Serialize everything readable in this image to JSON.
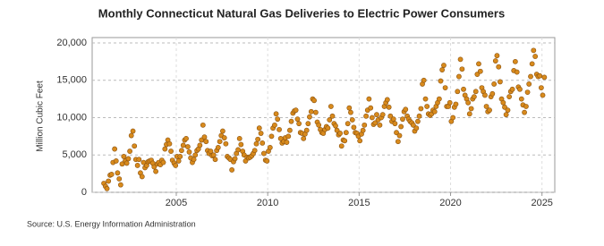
{
  "chart_data": {
    "type": "scatter",
    "title": "Monthly Connecticut Natural Gas Deliveries to Electric Power Consumers",
    "y_label": "Million Cubic Feet",
    "source": "Source: U.S. Energy Information Administration",
    "xlim": [
      2000.4,
      2025.7
    ],
    "xticks": [
      2005,
      2010,
      2015,
      2020,
      2025
    ],
    "ylim": [
      0,
      20000
    ],
    "yticks": [
      0,
      {
        "value": 5000,
        "label": "5,000"
      },
      {
        "value": 10000,
        "label": "10,000"
      },
      {
        "value": 15000,
        "label": "15,000"
      },
      {
        "value": 20000,
        "label": "20,000"
      }
    ],
    "grid": true,
    "color": "#d88a1c",
    "x": [
      2001.04,
      2001.13,
      2001.21,
      2001.29,
      2001.38,
      2001.46,
      2001.54,
      2001.63,
      2001.71,
      2001.79,
      2001.88,
      2001.96,
      2002.04,
      2002.13,
      2002.21,
      2002.29,
      2002.38,
      2002.46,
      2002.54,
      2002.63,
      2002.71,
      2002.79,
      2002.88,
      2002.96,
      2003.04,
      2003.13,
      2003.21,
      2003.29,
      2003.38,
      2003.46,
      2003.54,
      2003.63,
      2003.71,
      2003.79,
      2003.88,
      2003.96,
      2004.04,
      2004.13,
      2004.21,
      2004.29,
      2004.38,
      2004.46,
      2004.54,
      2004.63,
      2004.71,
      2004.79,
      2004.88,
      2004.96,
      2005.04,
      2005.13,
      2005.21,
      2005.29,
      2005.38,
      2005.46,
      2005.54,
      2005.63,
      2005.71,
      2005.79,
      2005.88,
      2005.96,
      2006.04,
      2006.13,
      2006.21,
      2006.29,
      2006.38,
      2006.46,
      2006.54,
      2006.63,
      2006.71,
      2006.79,
      2006.88,
      2006.96,
      2007.04,
      2007.13,
      2007.21,
      2007.29,
      2007.38,
      2007.46,
      2007.54,
      2007.63,
      2007.71,
      2007.79,
      2007.88,
      2007.96,
      2008.04,
      2008.13,
      2008.21,
      2008.29,
      2008.38,
      2008.46,
      2008.54,
      2008.63,
      2008.71,
      2008.79,
      2008.88,
      2008.96,
      2009.04,
      2009.13,
      2009.21,
      2009.29,
      2009.38,
      2009.46,
      2009.54,
      2009.63,
      2009.71,
      2009.79,
      2009.88,
      2009.96,
      2010.04,
      2010.13,
      2010.21,
      2010.29,
      2010.38,
      2010.46,
      2010.54,
      2010.63,
      2010.71,
      2010.79,
      2010.88,
      2010.96,
      2011.04,
      2011.13,
      2011.21,
      2011.29,
      2011.38,
      2011.46,
      2011.54,
      2011.63,
      2011.71,
      2011.79,
      2011.88,
      2011.96,
      2012.04,
      2012.13,
      2012.21,
      2012.29,
      2012.38,
      2012.46,
      2012.54,
      2012.63,
      2012.71,
      2012.79,
      2012.88,
      2012.96,
      2013.04,
      2013.13,
      2013.21,
      2013.29,
      2013.38,
      2013.46,
      2013.54,
      2013.63,
      2013.71,
      2013.79,
      2013.88,
      2013.96,
      2014.04,
      2014.13,
      2014.21,
      2014.29,
      2014.38,
      2014.46,
      2014.54,
      2014.63,
      2014.71,
      2014.79,
      2014.88,
      2014.96,
      2015.04,
      2015.13,
      2015.21,
      2015.29,
      2015.38,
      2015.46,
      2015.54,
      2015.63,
      2015.71,
      2015.79,
      2015.88,
      2015.96,
      2016.04,
      2016.13,
      2016.21,
      2016.29,
      2016.38,
      2016.46,
      2016.54,
      2016.63,
      2016.71,
      2016.79,
      2016.88,
      2016.96,
      2017.04,
      2017.13,
      2017.21,
      2017.29,
      2017.38,
      2017.46,
      2017.54,
      2017.63,
      2017.71,
      2017.79,
      2017.88,
      2017.96,
      2018.04,
      2018.13,
      2018.21,
      2018.29,
      2018.38,
      2018.46,
      2018.54,
      2018.63,
      2018.71,
      2018.79,
      2018.88,
      2018.96,
      2019.04,
      2019.13,
      2019.21,
      2019.29,
      2019.38,
      2019.46,
      2019.54,
      2019.63,
      2019.71,
      2019.79,
      2019.88,
      2019.96,
      2020.04,
      2020.13,
      2020.21,
      2020.29,
      2020.38,
      2020.46,
      2020.54,
      2020.63,
      2020.71,
      2020.79,
      2020.88,
      2020.96,
      2021.04,
      2021.13,
      2021.21,
      2021.29,
      2021.38,
      2021.46,
      2021.54,
      2021.63,
      2021.71,
      2021.79,
      2021.88,
      2021.96,
      2022.04,
      2022.13,
      2022.21,
      2022.29,
      2022.38,
      2022.46,
      2022.54,
      2022.63,
      2022.71,
      2022.79,
      2022.88,
      2022.96,
      2023.04,
      2023.13,
      2023.21,
      2023.29,
      2023.38,
      2023.46,
      2023.54,
      2023.63,
      2023.71,
      2023.79,
      2023.88,
      2023.96,
      2024.04,
      2024.13,
      2024.21,
      2024.29,
      2024.38,
      2024.46,
      2024.54,
      2024.63,
      2024.71,
      2024.79,
      2024.88,
      2024.96,
      2025.04,
      2025.13
    ],
    "values": [
      1200,
      800,
      500,
      1500,
      2300,
      2400,
      4000,
      5800,
      4200,
      2600,
      1800,
      1000,
      3800,
      4800,
      4200,
      3900,
      4500,
      5500,
      7600,
      8200,
      6200,
      4400,
      3600,
      4400,
      2600,
      2100,
      4000,
      3300,
      3600,
      4100,
      4200,
      4300,
      3900,
      3400,
      2800,
      3800,
      4000,
      3700,
      4300,
      4000,
      5800,
      6400,
      7000,
      6500,
      5500,
      4300,
      3900,
      3600,
      4800,
      4200,
      4800,
      5600,
      6300,
      7000,
      7200,
      6100,
      5400,
      4600,
      4000,
      4400,
      5000,
      5600,
      5800,
      6300,
      7000,
      9000,
      7400,
      6800,
      5600,
      5200,
      5500,
      4900,
      5000,
      4400,
      5600,
      6000,
      6800,
      7600,
      8200,
      7300,
      6500,
      4800,
      4600,
      4400,
      3000,
      4100,
      4500,
      5200,
      5700,
      7200,
      6400,
      5500,
      5000,
      4200,
      4700,
      4600,
      4700,
      4900,
      5200,
      5600,
      6500,
      7100,
      8600,
      7900,
      6600,
      5200,
      4300,
      4200,
      5500,
      6000,
      7500,
      8600,
      9000,
      10500,
      9800,
      8400,
      7200,
      6600,
      6800,
      7300,
      6700,
      7500,
      8300,
      9500,
      10600,
      10900,
      11000,
      9800,
      9200,
      8000,
      7900,
      7200,
      7800,
      8300,
      9200,
      10100,
      10800,
      12500,
      12300,
      10700,
      9400,
      9000,
      8400,
      8000,
      7900,
      8400,
      8800,
      8600,
      9700,
      11500,
      10200,
      9200,
      8900,
      8300,
      7700,
      7900,
      6200,
      7000,
      6900,
      8000,
      9200,
      11300,
      10700,
      9700,
      8700,
      8000,
      7900,
      7500,
      6900,
      7800,
      8300,
      9000,
      10200,
      11000,
      12500,
      11300,
      10000,
      9100,
      9300,
      10400,
      9700,
      9000,
      10000,
      10400,
      11500,
      12000,
      12400,
      11400,
      10200,
      9500,
      9800,
      9200,
      8000,
      6800,
      7600,
      8800,
      9800,
      10800,
      11100,
      10200,
      9800,
      9500,
      9300,
      9000,
      8200,
      8600,
      9500,
      10200,
      11200,
      14500,
      15000,
      12500,
      11500,
      10500,
      10300,
      10500,
      11000,
      10800,
      11500,
      12000,
      12500,
      14900,
      16400,
      17000,
      14000,
      11500,
      11500,
      12000,
      9500,
      10000,
      11400,
      11800,
      13500,
      15500,
      17800,
      16500,
      13800,
      13000,
      12500,
      12000,
      10500,
      11200,
      12500,
      12800,
      13500,
      15800,
      17200,
      16200,
      14000,
      13500,
      13000,
      11500,
      10800,
      11000,
      12800,
      13200,
      14500,
      17600,
      18300,
      16800,
      14800,
      12500,
      12000,
      11400,
      10400,
      11000,
      12800,
      13500,
      13800,
      16300,
      17500,
      16100,
      14100,
      13800,
      12500,
      11700,
      10700,
      11500,
      13400,
      14500,
      15500,
      17200,
      19000,
      18200,
      15800,
      15500,
      15600,
      14000,
      13000,
      15400
    ]
  }
}
